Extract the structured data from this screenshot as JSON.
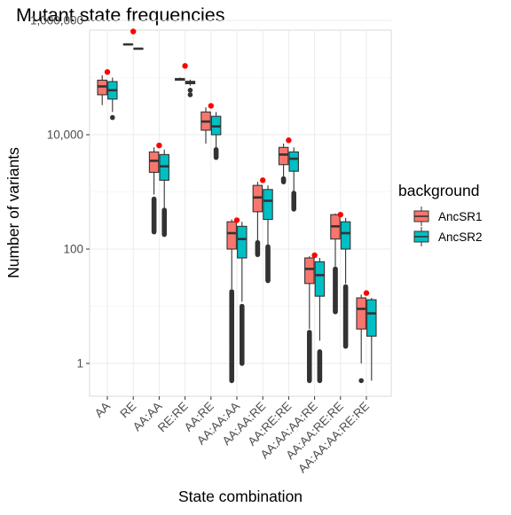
{
  "chart_data": {
    "type": "boxplot",
    "title": "Mutant state frequencies",
    "xlabel": "State combination",
    "ylabel": "Number of variants",
    "y_scale": "log10",
    "ylim": [
      0.3,
      1500000
    ],
    "y_ticks": [
      1,
      100,
      10000,
      1000000
    ],
    "y_tick_labels": [
      "1",
      "100",
      "10,000",
      "1,000,000"
    ],
    "grid": true,
    "categories": [
      "AA",
      "RE",
      "AA:AA",
      "RE:RE",
      "AA:RE",
      "AA:AA:AA",
      "AA:AA:RE",
      "AA:RE:RE",
      "AA:AA:AA:RE",
      "AA:AA:RE:RE",
      "AA:AA:AA:RE:RE"
    ],
    "legend": {
      "title": "background",
      "position": "right"
    },
    "series": [
      {
        "name": "AncSR1",
        "color": "#F8766D",
        "boxes": [
          {
            "category": "AA",
            "q1": 50000,
            "median": 70000,
            "q3": 90000,
            "whisker_low": 33000,
            "whisker_high": 110000
          },
          {
            "category": "RE",
            "q1": 378000,
            "median": 380000,
            "q3": 382000,
            "whisker_low": 375000,
            "whisker_high": 385000
          },
          {
            "category": "AA:AA",
            "q1": 2200,
            "median": 3500,
            "q3": 5000,
            "whisker_low": 900,
            "whisker_high": 6000
          },
          {
            "category": "RE:RE",
            "q1": 90000,
            "median": 93000,
            "q3": 96000,
            "whisker_low": 88000,
            "whisker_high": 100000
          },
          {
            "category": "AA:RE",
            "q1": 12000,
            "median": 17000,
            "q3": 25000,
            "whisker_low": 7000,
            "whisker_high": 30000
          },
          {
            "category": "AA:AA:AA",
            "q1": 100,
            "median": 190,
            "q3": 300,
            "whisker_low": 20,
            "whisker_high": 330
          },
          {
            "category": "AA:AA:RE",
            "q1": 450,
            "median": 800,
            "q3": 1300,
            "whisker_low": 140,
            "whisker_high": 1500
          },
          {
            "category": "AA:RE:RE",
            "q1": 3000,
            "median": 4500,
            "q3": 6000,
            "whisker_low": 1800,
            "whisker_high": 7000
          },
          {
            "category": "AA:AA:AA:RE",
            "q1": 25,
            "median": 45,
            "q3": 70,
            "whisker_low": 4,
            "whisker_high": 75
          },
          {
            "category": "AA:AA:RE:RE",
            "q1": 150,
            "median": 250,
            "q3": 400,
            "whisker_low": 50,
            "whisker_high": 420
          },
          {
            "category": "AA:AA:AA:RE:RE",
            "q1": 4,
            "median": 9,
            "q3": 14,
            "whisker_low": 1,
            "whisker_high": 16
          }
        ],
        "outliers": [
          {
            "category": "AA:AA",
            "range": [
              200,
              750
            ]
          },
          {
            "category": "AA:AA:AA",
            "range": [
              0.5,
              18
            ]
          },
          {
            "category": "AA:AA:RE",
            "range": [
              80,
              130
            ]
          },
          {
            "category": "AA:RE:RE",
            "range": [
              1500,
              1700
            ]
          },
          {
            "category": "AA:AA:AA:RE",
            "range": [
              0.5,
              3.5
            ]
          },
          {
            "category": "AA:AA:RE:RE",
            "range": [
              8,
              45
            ]
          },
          {
            "category": "AA:AA:AA:RE:RE",
            "values": [
              0.5
            ]
          }
        ]
      },
      {
        "name": "AncSR2",
        "color": "#00BFC4",
        "boxes": [
          {
            "category": "AA",
            "q1": 42000,
            "median": 60000,
            "q3": 85000,
            "whisker_low": 25000,
            "whisker_high": 100000
          },
          {
            "category": "RE",
            "q1": 318000,
            "median": 320000,
            "q3": 322000,
            "whisker_low": 315000,
            "whisker_high": 325000
          },
          {
            "category": "AA:AA",
            "q1": 1600,
            "median": 2800,
            "q3": 4500,
            "whisker_low": 500,
            "whisker_high": 5500
          },
          {
            "category": "RE:RE",
            "q1": 78000,
            "median": 82000,
            "q3": 86000,
            "whisker_low": 72000,
            "whisker_high": 92000
          },
          {
            "category": "AA:RE",
            "q1": 10000,
            "median": 14000,
            "q3": 21000,
            "whisker_low": 6000,
            "whisker_high": 25000
          },
          {
            "category": "AA:AA:AA",
            "q1": 70,
            "median": 150,
            "q3": 250,
            "whisker_low": 12,
            "whisker_high": 300
          },
          {
            "category": "AA:AA:RE",
            "q1": 330,
            "median": 700,
            "q3": 1100,
            "whisker_low": 120,
            "whisker_high": 1300
          },
          {
            "category": "AA:RE:RE",
            "q1": 2300,
            "median": 3800,
            "q3": 5000,
            "whisker_low": 1000,
            "whisker_high": 6000
          },
          {
            "category": "AA:AA:AA:RE",
            "q1": 15,
            "median": 35,
            "q3": 60,
            "whisker_low": 2.5,
            "whisker_high": 70
          },
          {
            "category": "AA:AA:RE:RE",
            "q1": 100,
            "median": 190,
            "q3": 300,
            "whisker_low": 25,
            "whisker_high": 350
          },
          {
            "category": "AA:AA:AA:RE:RE",
            "q1": 3,
            "median": 7.5,
            "q3": 13,
            "whisker_low": 0.5,
            "whisker_high": 14
          }
        ],
        "outliers": [
          {
            "category": "AA",
            "values": [
              20000
            ]
          },
          {
            "category": "RE:RE",
            "values": [
              60000,
              50000
            ]
          },
          {
            "category": "AA:AA",
            "range": [
              180,
              480
            ]
          },
          {
            "category": "AA:RE",
            "range": [
              4000,
              5500
            ]
          },
          {
            "category": "AA:AA:AA",
            "range": [
              1,
              10
            ]
          },
          {
            "category": "AA:AA:RE",
            "range": [
              28,
              110
            ]
          },
          {
            "category": "AA:RE:RE",
            "range": [
              500,
              950
            ]
          },
          {
            "category": "AA:AA:AA:RE",
            "range": [
              0.5,
              1.6
            ]
          },
          {
            "category": "AA:AA:RE:RE",
            "range": [
              2,
              22
            ]
          }
        ]
      }
    ],
    "reference_points": {
      "color": "#FF0000",
      "values": [
        {
          "category": "AA",
          "value": 125000
        },
        {
          "category": "RE",
          "value": 640000
        },
        {
          "category": "AA:AA",
          "value": 6500
        },
        {
          "category": "RE:RE",
          "value": 160000
        },
        {
          "category": "AA:RE",
          "value": 32000
        },
        {
          "category": "AA:AA:AA",
          "value": 320
        },
        {
          "category": "AA:AA:RE",
          "value": 1600
        },
        {
          "category": "AA:RE:RE",
          "value": 8000
        },
        {
          "category": "AA:AA:AA:RE",
          "value": 78
        },
        {
          "category": "AA:AA:RE:RE",
          "value": 400
        },
        {
          "category": "AA:AA:AA:RE:RE",
          "value": 17
        }
      ]
    }
  }
}
